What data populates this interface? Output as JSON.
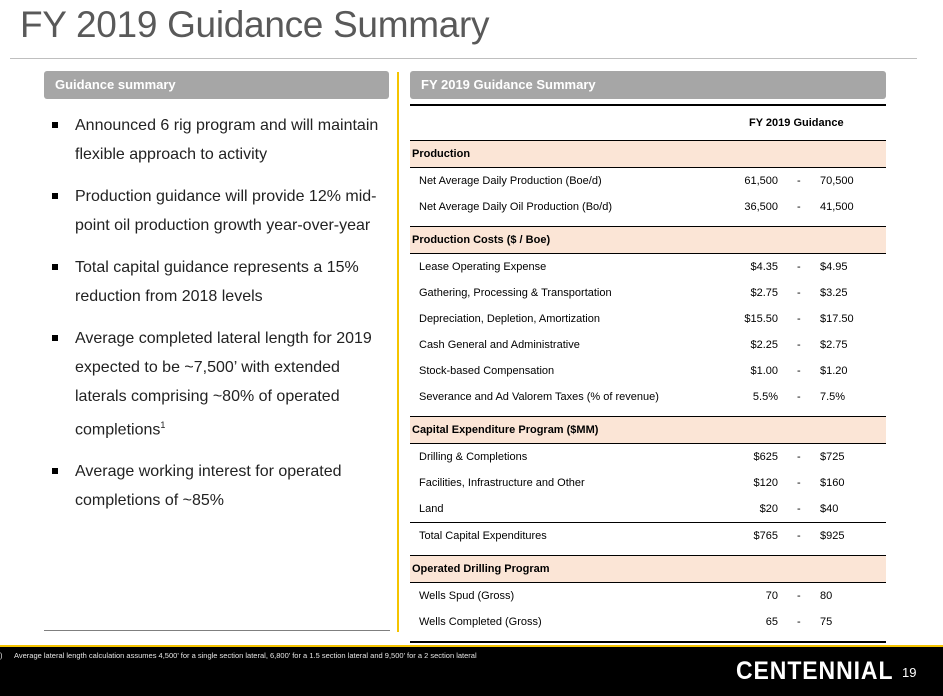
{
  "title": "FY 2019 Guidance Summary",
  "left_panel": {
    "header": "Guidance summary",
    "bullets": [
      "Announced 6 rig program and will maintain flexible approach to activity",
      "Production guidance will provide 12% mid-point oil production growth year-over-year",
      "Total capital guidance represents a 15% reduction from 2018 levels",
      "Average completed lateral length for 2019 expected to be ~7,500’ with extended laterals comprising ~80% of operated completions",
      "Average working interest for operated completions of ~85%"
    ],
    "bullet4_superscript": "1"
  },
  "right_panel": {
    "header": "FY 2019 Guidance Summary",
    "column_header": "FY 2019 Guidance",
    "sections": [
      {
        "name": "Production",
        "rows": [
          {
            "label": "Net Average Daily Production (Boe/d)",
            "low": "61,500",
            "sep": "-",
            "high": "70,500"
          },
          {
            "label": "Net Average Daily Oil Production (Bo/d)",
            "low": "36,500",
            "sep": "-",
            "high": "41,500"
          }
        ]
      },
      {
        "name": "Production Costs ($ / Boe)",
        "rows": [
          {
            "label": "Lease Operating Expense",
            "low": "$4.35",
            "sep": "-",
            "high": "$4.95"
          },
          {
            "label": "Gathering, Processing & Transportation",
            "low": "$2.75",
            "sep": "-",
            "high": "$3.25"
          },
          {
            "label": "Depreciation, Depletion, Amortization",
            "low": "$15.50",
            "sep": "-",
            "high": "$17.50"
          },
          {
            "label": "Cash General and Administrative",
            "low": "$2.25",
            "sep": "-",
            "high": "$2.75"
          },
          {
            "label": "Stock-based Compensation",
            "low": "$1.00",
            "sep": "-",
            "high": "$1.20"
          },
          {
            "label": "Severance and Ad Valorem Taxes (% of revenue)",
            "low": "5.5%",
            "sep": "-",
            "high": "7.5%"
          }
        ]
      },
      {
        "name": "Capital Expenditure Program ($MM)",
        "rows": [
          {
            "label": "Drilling & Completions",
            "low": "$625",
            "sep": "-",
            "high": "$725"
          },
          {
            "label": "Facilities, Infrastructure and Other",
            "low": "$120",
            "sep": "-",
            "high": "$160"
          },
          {
            "label": "Land",
            "low": "$20",
            "sep": "-",
            "high": "$40"
          },
          {
            "label": "Total Capital Expenditures",
            "low": "$765",
            "sep": "-",
            "high": "$925"
          }
        ]
      },
      {
        "name": "Operated Drilling Program",
        "rows": [
          {
            "label": "Wells Spud (Gross)",
            "low": "70",
            "sep": "-",
            "high": "80"
          },
          {
            "label": "Wells Completed (Gross)",
            "low": "65",
            "sep": "-",
            "high": "75"
          }
        ]
      }
    ]
  },
  "footer": {
    "footnote_marker": ")",
    "footnote": "Average lateral length calculation assumes 4,500’ for a single section lateral, 6,800’ for a 1.5 section lateral and 9,500’ for a 2 section lateral",
    "brand": "CENTENNIAL",
    "page_number": "19"
  },
  "colors": {
    "accent_yellow": "#f5c400",
    "header_gray": "#a6a6a6",
    "section_fill": "#fbe5d6",
    "title_gray": "#595959"
  }
}
